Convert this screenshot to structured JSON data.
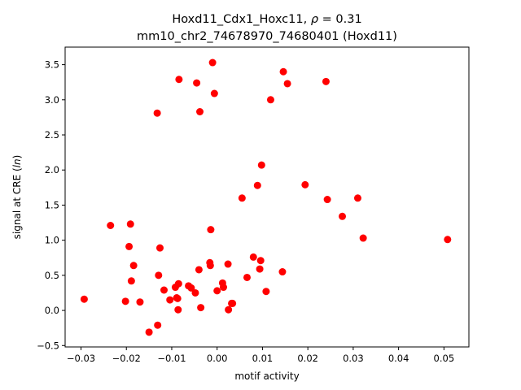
{
  "chart_data": {
    "type": "scatter",
    "title_line1": "Hoxd11_Cdx1_Hoxc11, ",
    "title_rho_symbol": "ρ",
    "title_rho_value": " = 0.31",
    "title_line2": "mm10_chr2_74678970_74680401 (Hoxd11)",
    "xlabel": "motif activity",
    "ylabel_prefix": "signal at CRE (",
    "ylabel_italic": "ln",
    "ylabel_suffix": ")",
    "xlim": [
      -0.0335,
      0.0555
    ],
    "ylim": [
      -0.52,
      3.75
    ],
    "xticks": [
      -0.03,
      -0.02,
      -0.01,
      0.0,
      0.01,
      0.02,
      0.03,
      0.04,
      0.05
    ],
    "xtick_labels": [
      "−0.03",
      "−0.02",
      "−0.01",
      "0.00",
      "0.01",
      "0.02",
      "0.03",
      "0.04",
      "0.05"
    ],
    "yticks": [
      -0.5,
      0.0,
      0.5,
      1.0,
      1.5,
      2.0,
      2.5,
      3.0,
      3.5
    ],
    "ytick_labels": [
      "−0.5",
      "0.0",
      "0.5",
      "1.0",
      "1.5",
      "2.0",
      "2.5",
      "3.0",
      "3.5"
    ],
    "marker_color": "#ff0000",
    "grid": false,
    "points": [
      [
        -0.0293,
        0.16
      ],
      [
        -0.0235,
        1.21
      ],
      [
        -0.0202,
        0.13
      ],
      [
        -0.0194,
        0.91
      ],
      [
        -0.0191,
        1.23
      ],
      [
        -0.0189,
        0.42
      ],
      [
        -0.0184,
        0.64
      ],
      [
        -0.017,
        0.12
      ],
      [
        -0.015,
        -0.31
      ],
      [
        -0.0132,
        2.81
      ],
      [
        -0.0131,
        -0.21
      ],
      [
        -0.0129,
        0.5
      ],
      [
        -0.0126,
        0.89
      ],
      [
        -0.0117,
        0.29
      ],
      [
        -0.0104,
        0.15
      ],
      [
        -0.0092,
        0.33
      ],
      [
        -0.0089,
        0.18
      ],
      [
        -0.0087,
        0.17
      ],
      [
        -0.0086,
        0.01
      ],
      [
        -0.0085,
        0.38
      ],
      [
        -0.0084,
        3.29
      ],
      [
        -0.0063,
        0.35
      ],
      [
        -0.0057,
        0.32
      ],
      [
        -0.0048,
        0.25
      ],
      [
        -0.0045,
        3.24
      ],
      [
        -0.004,
        0.58
      ],
      [
        -0.0038,
        2.83
      ],
      [
        -0.0036,
        0.04
      ],
      [
        -0.0016,
        0.68
      ],
      [
        -0.0015,
        0.64
      ],
      [
        -0.0014,
        1.15
      ],
      [
        -0.001,
        3.53
      ],
      [
        -0.0006,
        3.09
      ],
      [
        0.0,
        0.28
      ],
      [
        0.0012,
        0.39
      ],
      [
        0.0014,
        0.33
      ],
      [
        0.0024,
        0.66
      ],
      [
        0.0025,
        0.01
      ],
      [
        0.0032,
        0.1
      ],
      [
        0.0034,
        0.1
      ],
      [
        0.0055,
        1.6
      ],
      [
        0.0066,
        0.47
      ],
      [
        0.008,
        0.76
      ],
      [
        0.0089,
        1.78
      ],
      [
        0.0094,
        0.59
      ],
      [
        0.0096,
        0.71
      ],
      [
        0.0098,
        2.07
      ],
      [
        0.0108,
        0.27
      ],
      [
        0.0118,
        3.0
      ],
      [
        0.0144,
        0.55
      ],
      [
        0.0146,
        3.4
      ],
      [
        0.0155,
        3.23
      ],
      [
        0.0194,
        1.79
      ],
      [
        0.024,
        3.26
      ],
      [
        0.0243,
        1.58
      ],
      [
        0.0276,
        1.34
      ],
      [
        0.031,
        1.6
      ],
      [
        0.0322,
        1.03
      ],
      [
        0.0508,
        1.01
      ]
    ]
  }
}
